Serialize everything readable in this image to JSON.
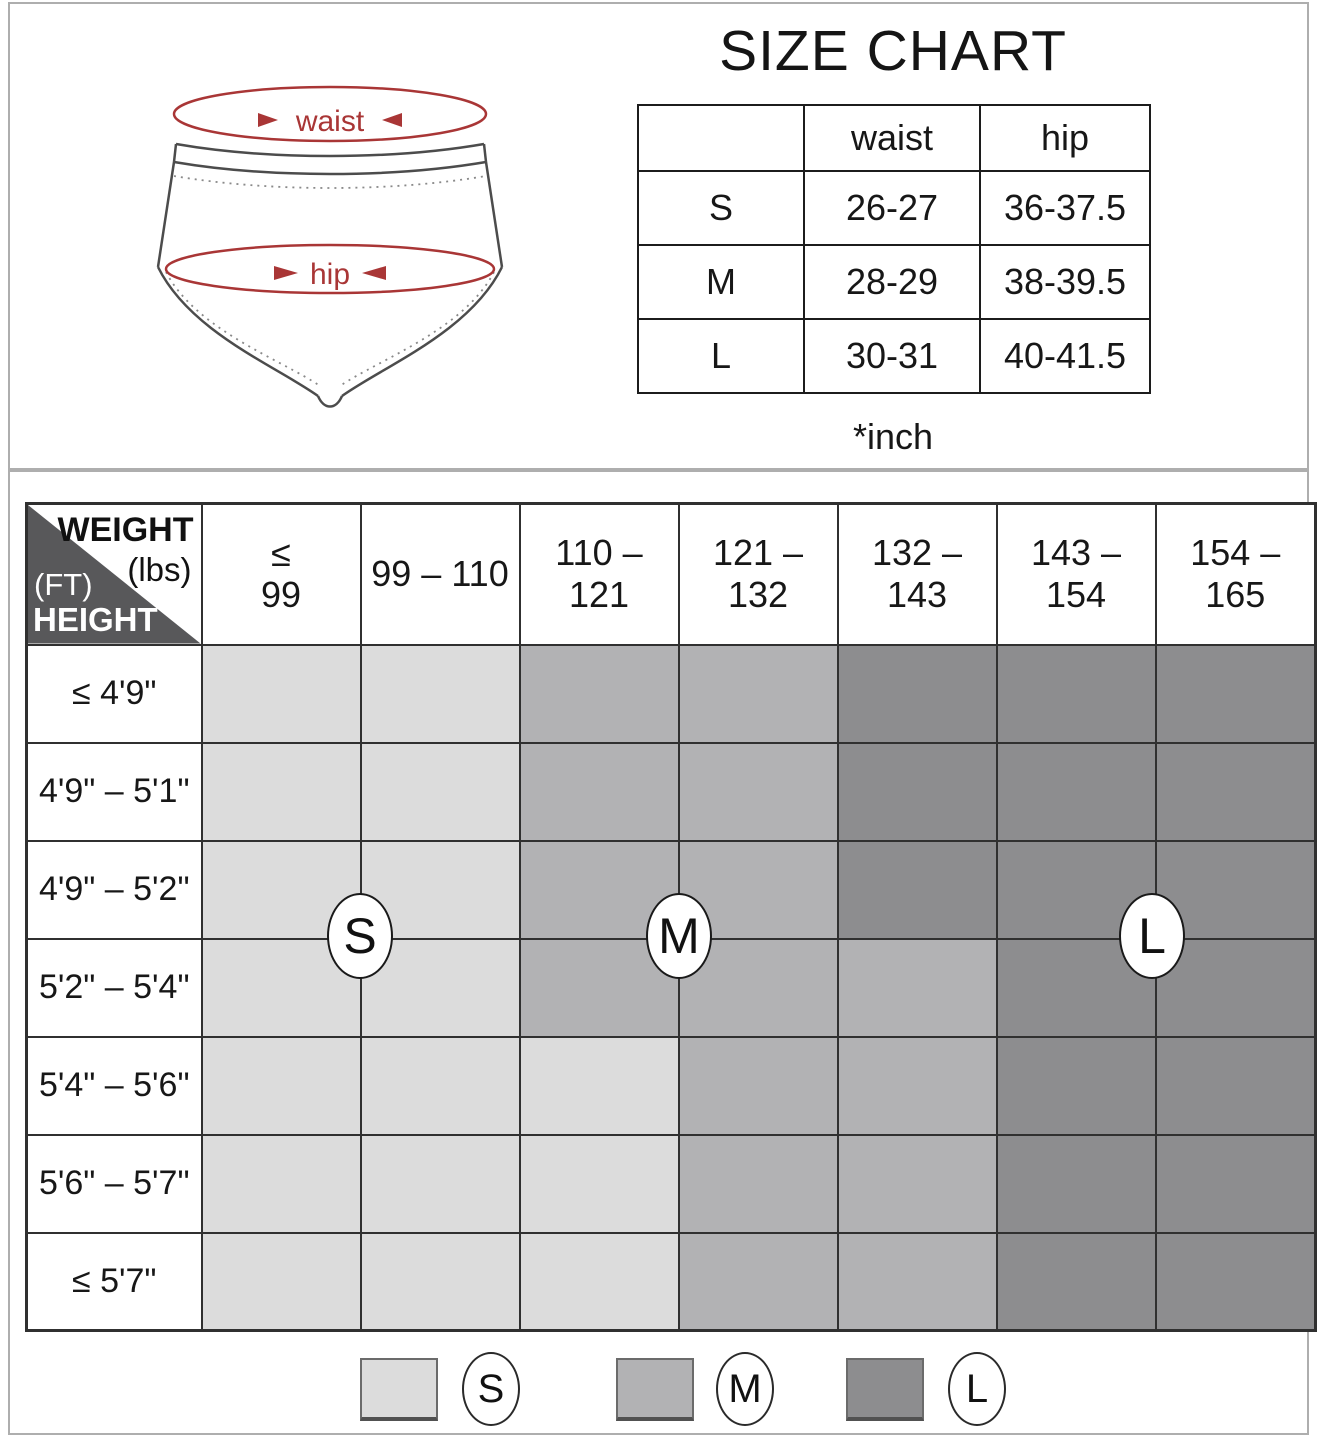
{
  "top_panel": {
    "title": "SIZE CHART",
    "unit_note": "*inch",
    "diagram": {
      "waist_label": "waist",
      "hip_label": "hip",
      "annotation_color": "#a93636"
    },
    "size_table": {
      "columns": [
        "",
        "waist",
        "hip"
      ],
      "rows": [
        {
          "size": "S",
          "waist": "26-27",
          "hip": "36-37.5"
        },
        {
          "size": "M",
          "waist": "28-29",
          "hip": "38-39.5"
        },
        {
          "size": "L",
          "waist": "30-31",
          "hip": "40-41.5"
        }
      ]
    }
  },
  "matrix_panel": {
    "corner": {
      "weight_label": "WEIGHT",
      "weight_unit": "(lbs)",
      "height_unit": "(FT)",
      "height_label": "HEIGHT"
    },
    "weight_columns": [
      "≤\n99",
      "99 – 110",
      "110 – 121",
      "121 – 132",
      "132 – 143",
      "143 – 154",
      "154 – 165"
    ],
    "height_rows": [
      "≤  4'9\"",
      "4'9\" – 5'1\"",
      "4'9\" – 5'2\"",
      "5'2\" – 5'4\"",
      "5'4\" – 5'6\"",
      "5'6\" – 5'7\"",
      "≤  5'7\""
    ],
    "cells": [
      [
        "S",
        "S",
        "M",
        "M",
        "L",
        "L",
        "L"
      ],
      [
        "S",
        "S",
        "M",
        "M",
        "L",
        "L",
        "L"
      ],
      [
        "S",
        "S",
        "M",
        "M",
        "L",
        "L",
        "L"
      ],
      [
        "S",
        "S",
        "M",
        "M",
        "M",
        "L",
        "L"
      ],
      [
        "S",
        "S",
        "S",
        "M",
        "M",
        "L",
        "L"
      ],
      [
        "S",
        "S",
        "S",
        "M",
        "M",
        "L",
        "L"
      ],
      [
        "S",
        "S",
        "S",
        "M",
        "M",
        "L",
        "L"
      ]
    ],
    "size_colors": {
      "S": "#dcdcdc",
      "M": "#b2b2b4",
      "L": "#8d8d8f"
    },
    "corner_triangle_color": "#58585a",
    "overlay_circles": [
      {
        "label": "S"
      },
      {
        "label": "M"
      },
      {
        "label": "L"
      }
    ],
    "legend": [
      {
        "label": "S",
        "color": "#dcdcdc"
      },
      {
        "label": "M",
        "color": "#b2b2b4"
      },
      {
        "label": "L",
        "color": "#8d8d8f"
      }
    ]
  }
}
